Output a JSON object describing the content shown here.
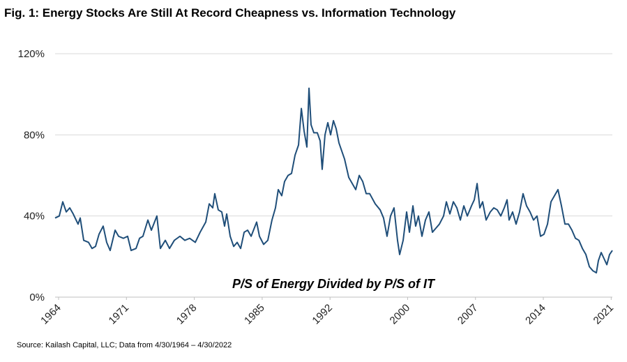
{
  "chart_data": {
    "type": "line",
    "title": "Fig. 1: Energy Stocks Are Still At Record Cheapness vs. Information Technology",
    "annotation": "P/S of Energy Divided by P/S of IT",
    "source": "Source: Kailash Capital, LLC; Data from 4/30/1964 – 4/30/2022",
    "color": "#1f4e79",
    "grid": true,
    "xlim": [
      1963.64,
      2021.12
    ],
    "xticks": [
      1964,
      1971,
      1978,
      1985,
      1992,
      2000,
      2007,
      2014,
      2021
    ],
    "ylim": [
      0,
      120
    ],
    "yticks": [
      {
        "value": 0,
        "label": "0%"
      },
      {
        "value": 40,
        "label": "40%"
      },
      {
        "value": 80,
        "label": "80%"
      },
      {
        "value": 120,
        "label": "120%"
      }
    ],
    "x": [
      1963.64,
      1964.07,
      1964.43,
      1964.79,
      1965.15,
      1965.51,
      1966.01,
      1966.23,
      1966.59,
      1967.09,
      1967.45,
      1967.81,
      1968.17,
      1968.6,
      1968.96,
      1969.32,
      1969.83,
      1970.19,
      1970.69,
      1971.12,
      1971.48,
      1971.99,
      1972.35,
      1972.7,
      1973.21,
      1973.57,
      1974.14,
      1974.5,
      1975.01,
      1975.44,
      1975.94,
      1976.52,
      1977.02,
      1977.52,
      1978.1,
      1978.6,
      1979.18,
      1979.54,
      1979.9,
      1980.11,
      1980.47,
      1980.83,
      1981.12,
      1981.34,
      1981.7,
      1982.06,
      1982.42,
      1982.78,
      1983.14,
      1983.5,
      1983.86,
      1984.43,
      1984.72,
      1985.15,
      1985.58,
      1986.01,
      1986.37,
      1986.66,
      1987.02,
      1987.31,
      1987.67,
      1988.03,
      1988.39,
      1988.75,
      1989.04,
      1989.32,
      1989.61,
      1989.83,
      1990.04,
      1990.33,
      1990.69,
      1990.98,
      1991.19,
      1991.48,
      1991.77,
      1992.06,
      1992.35,
      1992.63,
      1992.92,
      1993.21,
      1993.5,
      1993.93,
      1994.29,
      1994.65,
      1995.01,
      1995.37,
      1995.73,
      1996.09,
      1996.66,
      1997.17,
      1997.52,
      1997.88,
      1998.24,
      1998.6,
      1998.96,
      1999.18,
      1999.54,
      1999.9,
      2000.19,
      2000.55,
      2000.83,
      2001.12,
      2001.48,
      2001.84,
      2002.2,
      2002.56,
      2002.92,
      2003.28,
      2003.71,
      2004.0,
      2004.36,
      2004.72,
      2005.08,
      2005.44,
      2005.8,
      2006.16,
      2006.59,
      2006.88,
      2007.17,
      2007.45,
      2007.74,
      2008.1,
      2008.53,
      2008.89,
      2009.25,
      2009.61,
      2009.97,
      2010.26,
      2010.47,
      2010.83,
      2011.19,
      2011.55,
      2011.91,
      2012.27,
      2012.63,
      2012.99,
      2013.35,
      2013.71,
      2014.07,
      2014.43,
      2014.79,
      2015.15,
      2015.51,
      2015.87,
      2016.23,
      2016.59,
      2016.95,
      2017.31,
      2017.67,
      2018.03,
      2018.39,
      2018.75,
      2019.11,
      2019.47,
      2019.68,
      2019.97,
      2020.26,
      2020.55,
      2020.83,
      2021.12
    ],
    "values": [
      39,
      40,
      47,
      42,
      44,
      41,
      36,
      39,
      28,
      27,
      24,
      25,
      31,
      35,
      27,
      23,
      33,
      30,
      29,
      30,
      23,
      24,
      29,
      30,
      38,
      33,
      40,
      24,
      28,
      24,
      28,
      30,
      28,
      29,
      27,
      32,
      37,
      46,
      44,
      51,
      43,
      42,
      35,
      41,
      30,
      25,
      27,
      24,
      32,
      33,
      30,
      37,
      30,
      26,
      28,
      38,
      44,
      53,
      50,
      57,
      60,
      61,
      70,
      75,
      93,
      82,
      74,
      103,
      85,
      81,
      81,
      77,
      63,
      80,
      86,
      80,
      87,
      83,
      76,
      72,
      68,
      59,
      56,
      53,
      60,
      57,
      51,
      51,
      46,
      43,
      39,
      30,
      40,
      44,
      28,
      21,
      28,
      42,
      32,
      45,
      35,
      40,
      30,
      38,
      42,
      32,
      34,
      36,
      40,
      47,
      41,
      47,
      44,
      38,
      45,
      40,
      45,
      48,
      56,
      44,
      47,
      38,
      42,
      44,
      43,
      40,
      44,
      48,
      38,
      42,
      36,
      42,
      51,
      45,
      42,
      38,
      40,
      30,
      31,
      36,
      47,
      50,
      53,
      45,
      36,
      36,
      33,
      29,
      28,
      24,
      21,
      15,
      13,
      12,
      18,
      22,
      19,
      16,
      21,
      23
    ]
  }
}
